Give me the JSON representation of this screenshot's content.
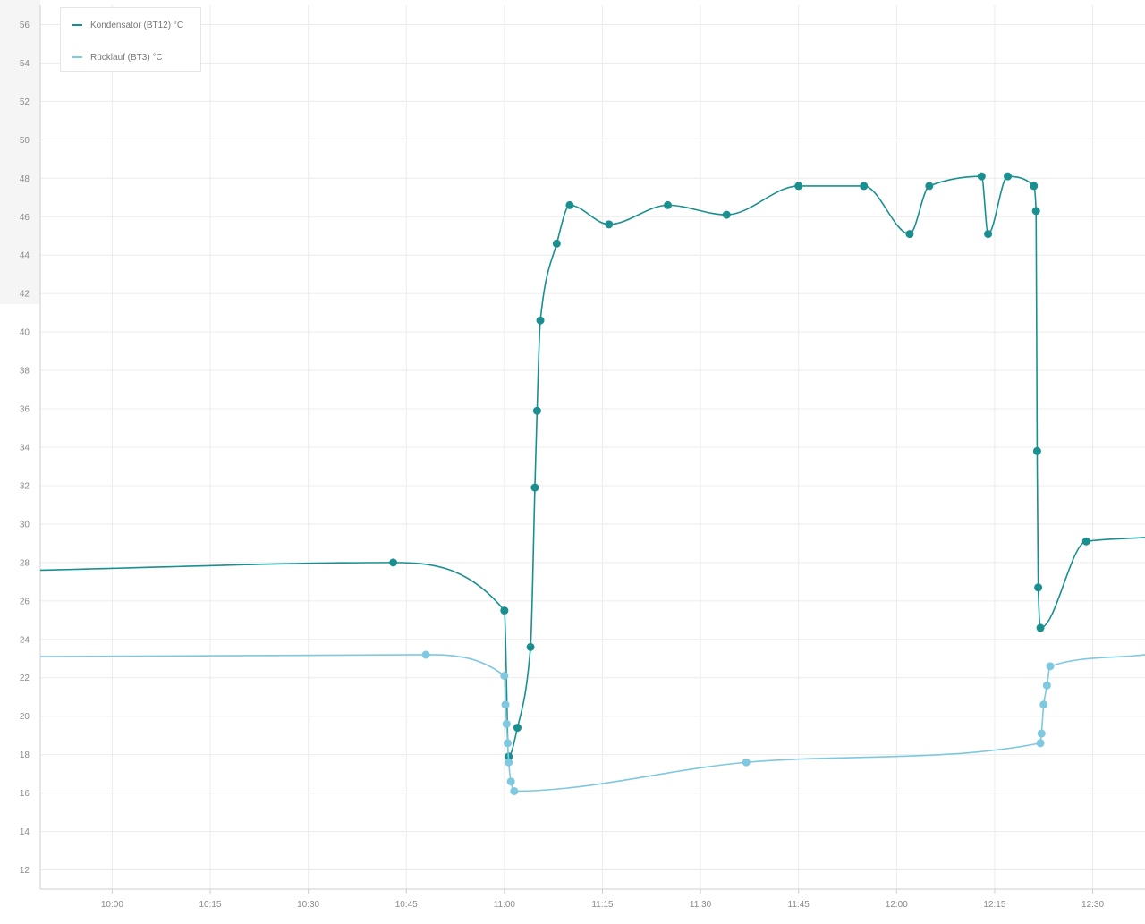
{
  "chart_data": {
    "type": "line",
    "x_unit": "time",
    "x_range": [
      "09:49",
      "12:38"
    ],
    "y_range": [
      11,
      57
    ],
    "x_ticks": [
      "10:00",
      "10:15",
      "10:30",
      "10:45",
      "11:00",
      "11:15",
      "11:30",
      "11:45",
      "12:00",
      "12:15",
      "12:30"
    ],
    "y_ticks": [
      12,
      14,
      16,
      18,
      20,
      22,
      24,
      26,
      28,
      30,
      32,
      34,
      36,
      38,
      40,
      42,
      44,
      46,
      48,
      50,
      52,
      54,
      56
    ],
    "grid": true,
    "legend_position": "top-left",
    "series": [
      {
        "name": "Kondensator (BT12) °C",
        "color": "#1a8f8f",
        "start": [
          "09:49",
          27.6
        ],
        "end": [
          "12:38",
          29.3
        ],
        "points": [
          [
            "10:43",
            28.0
          ],
          [
            "11:00",
            25.5
          ],
          [
            "11:00:40",
            17.9
          ],
          [
            "11:02",
            19.4
          ],
          [
            "11:04",
            23.6
          ],
          [
            "11:04:40",
            31.9
          ],
          [
            "11:05",
            35.9
          ],
          [
            "11:05:30",
            40.6
          ],
          [
            "11:08",
            44.6
          ],
          [
            "11:10",
            46.6
          ],
          [
            "11:16",
            45.6
          ],
          [
            "11:25",
            46.6
          ],
          [
            "11:34",
            46.1
          ],
          [
            "11:45",
            47.6
          ],
          [
            "11:55",
            47.6
          ],
          [
            "12:02",
            45.1
          ],
          [
            "12:05",
            47.6
          ],
          [
            "12:13",
            48.1
          ],
          [
            "12:14",
            45.1
          ],
          [
            "12:17",
            48.1
          ],
          [
            "12:21",
            47.6
          ],
          [
            "12:21:20",
            46.3
          ],
          [
            "12:21:30",
            33.8
          ],
          [
            "12:21:40",
            26.7
          ],
          [
            "12:22",
            24.6
          ],
          [
            "12:29",
            29.1
          ]
        ]
      },
      {
        "name": "Rücklauf (BT3) °C",
        "color": "#7ec8e0",
        "start": [
          "09:49",
          23.1
        ],
        "end": [
          "12:38",
          23.2
        ],
        "points": [
          [
            "10:48",
            23.2
          ],
          [
            "11:00",
            22.1
          ],
          [
            "11:00:10",
            20.6
          ],
          [
            "11:00:20",
            19.6
          ],
          [
            "11:00:30",
            18.6
          ],
          [
            "11:00:40",
            17.6
          ],
          [
            "11:01",
            16.6
          ],
          [
            "11:01:30",
            16.1
          ],
          [
            "11:37",
            17.6
          ],
          [
            "12:22",
            18.6
          ],
          [
            "12:22:10",
            19.1
          ],
          [
            "12:22:30",
            20.6
          ],
          [
            "12:23",
            21.6
          ],
          [
            "12:23:30",
            22.6
          ]
        ]
      }
    ]
  }
}
